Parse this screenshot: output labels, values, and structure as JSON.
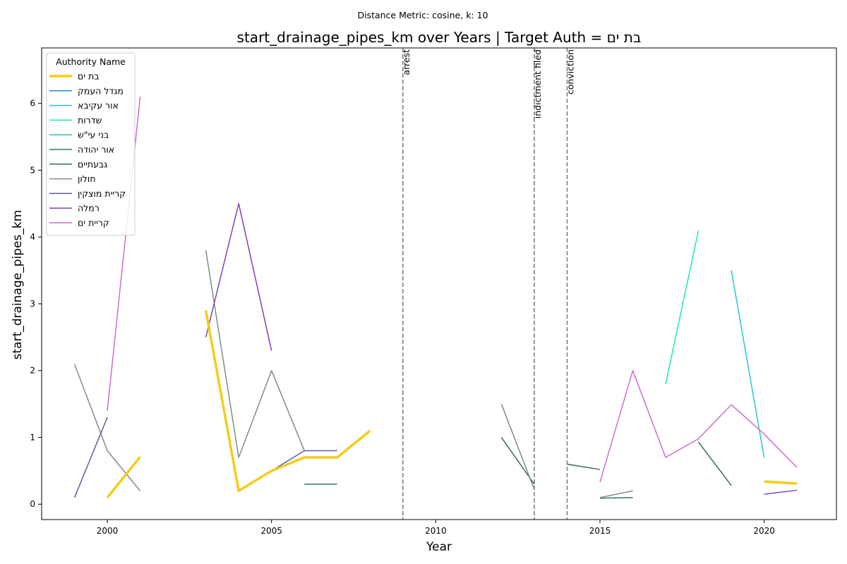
{
  "chart_data": {
    "type": "line",
    "title": "start_drainage_pipes_km over Years | Target Auth = בת ים",
    "subtitle": "Distance Metric: cosine, k: 10",
    "xlabel": "Year",
    "ylabel": "start_drainage_pipes_km",
    "xlim": [
      1998,
      2022.2
    ],
    "ylim": [
      -0.23,
      6.83
    ],
    "xticks": [
      2000,
      2005,
      2010,
      2015,
      2020
    ],
    "yticks": [
      0,
      1,
      2,
      3,
      4,
      5,
      6
    ],
    "grid": false,
    "legend": {
      "title": "Authority Name",
      "position": "top-left"
    },
    "events": [
      {
        "x": 2009,
        "label": "arrest"
      },
      {
        "x": 2013,
        "label": "indictment filed"
      },
      {
        "x": 2014,
        "label": "conviction"
      }
    ],
    "series": [
      {
        "name": "בת ים",
        "color": "#f5cc19",
        "width": 3.5,
        "target": true,
        "points": [
          [
            2000,
            0.1
          ],
          [
            2001,
            0.71
          ],
          [
            null,
            null
          ],
          [
            2003,
            2.9
          ],
          [
            2004,
            0.2
          ],
          [
            2005,
            0.5
          ],
          [
            2006,
            0.7
          ],
          [
            2007,
            0.7
          ],
          [
            2008,
            1.1
          ],
          [
            null,
            null
          ],
          [
            2020,
            0.34
          ],
          [
            2021,
            0.31
          ]
        ]
      },
      {
        "name": "מגדל העמק",
        "color": "#1e88e5",
        "width": 1.5,
        "points": []
      },
      {
        "name": "אור עקיבא",
        "color": "#26c6da",
        "width": 1.5,
        "points": [
          [
            2019,
            3.5
          ],
          [
            2020,
            0.7
          ]
        ]
      },
      {
        "name": "שדרות",
        "color": "#1de9b6",
        "width": 1.5,
        "points": [
          [
            2017,
            1.8
          ],
          [
            2018,
            4.1
          ]
        ]
      },
      {
        "name": "בני עי\"ש",
        "color": "#26c6a0",
        "width": 1.5,
        "points": []
      },
      {
        "name": "אור יהודה",
        "color": "#2e7d5b",
        "width": 1.5,
        "points": [
          [
            2006,
            0.3
          ],
          [
            2007,
            0.3
          ],
          [
            null,
            null
          ],
          [
            2015,
            0.09
          ],
          [
            2016,
            0.1
          ]
        ]
      },
      {
        "name": "גבעתיים",
        "color": "#3d6b58",
        "width": 1.5,
        "points": [
          [
            2012,
            1.0
          ],
          [
            2013,
            0.3
          ],
          [
            null,
            null
          ],
          [
            2014,
            0.6
          ],
          [
            2015,
            0.52
          ],
          [
            null,
            null
          ],
          [
            2018,
            0.93
          ],
          [
            2019,
            0.28
          ]
        ]
      },
      {
        "name": "חולון",
        "color": "#7f8c8d",
        "width": 1.5,
        "points": [
          [
            1999,
            2.1
          ],
          [
            2000,
            0.8
          ],
          [
            2001,
            0.2
          ],
          [
            null,
            null
          ],
          [
            2003,
            3.8
          ],
          [
            2004,
            0.7
          ],
          [
            2005,
            2.0
          ],
          [
            2006,
            0.8
          ],
          [
            null,
            null
          ],
          [
            2012,
            1.5
          ],
          [
            2013,
            0.22
          ],
          [
            null,
            null
          ],
          [
            2015,
            0.1
          ],
          [
            2016,
            0.2
          ]
        ]
      },
      {
        "name": "קריית מוצקין",
        "color": "#5c5c9e",
        "width": 1.5,
        "points": [
          [
            1999,
            0.1
          ],
          [
            2000,
            1.3
          ],
          [
            null,
            null
          ],
          [
            2004,
            0.2
          ],
          [
            2005,
            0.5
          ],
          [
            2006,
            0.8
          ],
          [
            2007,
            0.8
          ]
        ]
      },
      {
        "name": "רמלה",
        "color": "#7e44b4",
        "width": 1.5,
        "points": [
          [
            2003,
            2.5
          ],
          [
            2004,
            4.5
          ],
          [
            2005,
            2.3
          ],
          [
            null,
            null
          ],
          [
            2020,
            0.15
          ],
          [
            2021,
            0.21
          ]
        ]
      },
      {
        "name": "קריית ים",
        "color": "#cc6ecc",
        "width": 1.5,
        "points": [
          [
            2000,
            1.4
          ],
          [
            2001,
            6.1
          ],
          [
            null,
            null
          ],
          [
            2015,
            0.33
          ],
          [
            2016,
            2.0
          ],
          [
            2017,
            0.7
          ],
          [
            2018,
            0.98
          ],
          [
            2019,
            1.49
          ],
          [
            2020,
            1.05
          ],
          [
            2021,
            0.55
          ]
        ]
      }
    ]
  }
}
